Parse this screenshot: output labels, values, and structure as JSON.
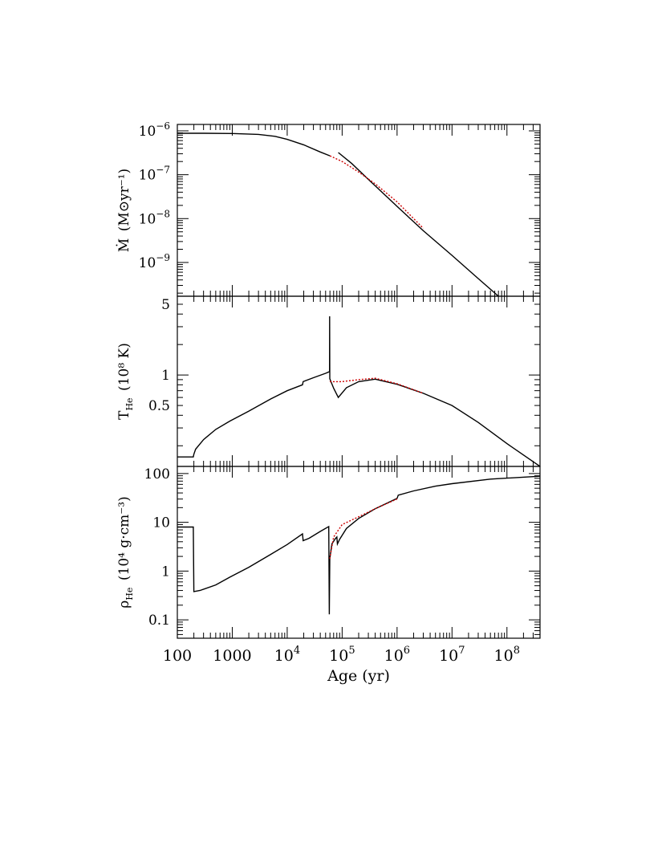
{
  "chart_data": [
    {
      "type": "line",
      "panel": "top",
      "ylabel_main": "Ṁ",
      "ylabel_unit": "(M⊙yr⁻¹)",
      "xscale": "log",
      "yscale": "log",
      "xlim": [
        100,
        400000000
      ],
      "ylim": [
        1.7e-10,
        1.4e-06
      ],
      "yticks": [
        {
          "v": 1e-06,
          "mant": "10",
          "exp": "−6"
        },
        {
          "v": 1e-07,
          "mant": "10",
          "exp": "−7"
        },
        {
          "v": 1e-08,
          "mant": "10",
          "exp": "−8"
        },
        {
          "v": 1e-09,
          "mant": "10",
          "exp": "−9"
        }
      ],
      "series": [
        {
          "style": "solid",
          "segments": [
            [
              [
                100,
                8.8e-07
              ],
              [
                300,
                8.8e-07
              ],
              [
                1000,
                8.7e-07
              ],
              [
                3000,
                8.3e-07
              ],
              [
                6000,
                7.5e-07
              ],
              [
                10000,
                6.4e-07
              ],
              [
                20000,
                4.8e-07
              ],
              [
                40000,
                3.3e-07
              ],
              [
                60000,
                2.7e-07
              ]
            ],
            [
              [
                85000,
                3.2e-07
              ],
              [
                150000,
                1.8e-07
              ],
              [
                300000,
                7.8e-08
              ],
              [
                1000000,
                1.9e-08
              ],
              [
                3000000,
                5.3e-09
              ],
              [
                10000000,
                1.45e-09
              ],
              [
                30000000,
                4.3e-10
              ],
              [
                70000000,
                1.7e-10
              ]
            ]
          ]
        },
        {
          "style": "dotted",
          "segments": [
            [
              [
                60000,
                2.7e-07
              ],
              [
                100000,
                2e-07
              ],
              [
                200000,
                1.15e-07
              ],
              [
                400000,
                6.2e-08
              ],
              [
                1000000,
                2.4e-08
              ],
              [
                3000000,
                6e-09
              ]
            ]
          ]
        }
      ]
    },
    {
      "type": "line",
      "panel": "middle",
      "ylabel_main": "T",
      "ylabel_sub": "He",
      "ylabel_unit": "(10⁸ K)",
      "xscale": "log",
      "yscale": "log",
      "xlim": [
        100,
        400000000
      ],
      "ylim": [
        0.125,
        6
      ],
      "yticks": [
        {
          "v": 5,
          "label": "5"
        },
        {
          "v": 1,
          "label": "1"
        },
        {
          "v": 0.5,
          "label": "0.5"
        }
      ],
      "series": [
        {
          "style": "solid",
          "segments": [
            [
              [
                100,
                0.155
              ],
              [
                195,
                0.155
              ],
              [
                200,
                0.165
              ],
              [
                215,
                0.185
              ],
              [
                300,
                0.23
              ],
              [
                500,
                0.29
              ],
              [
                900,
                0.35
              ],
              [
                2000,
                0.44
              ],
              [
                5000,
                0.58
              ],
              [
                10000,
                0.7
              ],
              [
                19000,
                0.8
              ],
              [
                19500,
                0.86
              ],
              [
                30000,
                0.94
              ],
              [
                50000,
                1.04
              ],
              [
                59000,
                1.08
              ],
              [
                59200,
                3.8
              ],
              [
                59500,
                0.92
              ],
              [
                70000,
                0.74
              ],
              [
                85000,
                0.6
              ],
              [
                120000,
                0.75
              ],
              [
                200000,
                0.86
              ],
              [
                400000,
                0.91
              ],
              [
                1000000,
                0.81
              ],
              [
                3000000,
                0.66
              ],
              [
                10000000,
                0.5
              ],
              [
                30000000,
                0.34
              ],
              [
                100000000,
                0.21
              ],
              [
                400000000,
                0.125
              ]
            ]
          ]
        },
        {
          "style": "dotted",
          "segments": [
            [
              [
                59500,
                0.86
              ],
              [
                100000,
                0.86
              ],
              [
                200000,
                0.9
              ],
              [
                400000,
                0.93
              ],
              [
                1000000,
                0.82
              ],
              [
                3000000,
                0.66
              ]
            ]
          ]
        }
      ]
    },
    {
      "type": "line",
      "panel": "bottom",
      "ylabel_main": "ρ",
      "ylabel_sub": "He",
      "ylabel_unit": "(10⁴ g·cm⁻³)",
      "xlabel": "Age (yr)",
      "xscale": "log",
      "yscale": "log",
      "xlim": [
        100,
        400000000
      ],
      "ylim": [
        0.042,
        140
      ],
      "yticks": [
        {
          "v": 100,
          "label": "100"
        },
        {
          "v": 10,
          "label": "10"
        },
        {
          "v": 1,
          "label": "1"
        },
        {
          "v": 0.1,
          "label": "0.1"
        }
      ],
      "xticks": [
        {
          "v": 100,
          "mant": "100",
          "exp": ""
        },
        {
          "v": 1000,
          "mant": "1000",
          "exp": ""
        },
        {
          "v": 10000,
          "mant": "10",
          "exp": "4"
        },
        {
          "v": 100000,
          "mant": "10",
          "exp": "5"
        },
        {
          "v": 1000000,
          "mant": "10",
          "exp": "6"
        },
        {
          "v": 10000000,
          "mant": "10",
          "exp": "7"
        },
        {
          "v": 100000000,
          "mant": "10",
          "exp": "8"
        }
      ],
      "series": [
        {
          "style": "solid",
          "segments": [
            [
              [
                100,
                8
              ],
              [
                195,
                8
              ],
              [
                200,
                0.38
              ],
              [
                260,
                0.4
              ],
              [
                500,
                0.52
              ],
              [
                900,
                0.75
              ],
              [
                2000,
                1.2
              ],
              [
                5000,
                2.2
              ],
              [
                10000,
                3.5
              ],
              [
                19000,
                5.8
              ],
              [
                19500,
                4.2
              ],
              [
                25000,
                4.7
              ],
              [
                40000,
                6.5
              ],
              [
                57000,
                8.2
              ],
              [
                58500,
                0.13
              ],
              [
                59500,
                1.8
              ],
              [
                65000,
                3.6
              ],
              [
                75000,
                4.6
              ],
              [
                80000,
                5
              ],
              [
                82000,
                3.6
              ],
              [
                90000,
                4.5
              ],
              [
                120000,
                7.5
              ],
              [
                200000,
                12
              ],
              [
                400000,
                19
              ],
              [
                1000000,
                31
              ],
              [
                1050000,
                36
              ],
              [
                2000000,
                44
              ],
              [
                5000000,
                55
              ],
              [
                10000000,
                62
              ],
              [
                50000000,
                77
              ],
              [
                400000000,
                88
              ]
            ]
          ]
        },
        {
          "style": "dotted",
          "segments": [
            [
              [
                59500,
                1.8
              ],
              [
                70000,
                5
              ],
              [
                100000,
                9
              ],
              [
                200000,
                13
              ],
              [
                400000,
                19
              ],
              [
                1000000,
                30
              ]
            ]
          ]
        }
      ]
    }
  ]
}
